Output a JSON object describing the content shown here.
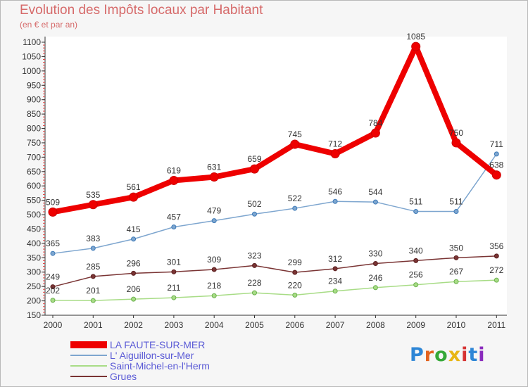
{
  "header": {
    "title": "Evolution des Impôts locaux par Habitant",
    "subtitle": "(en € et par an)"
  },
  "logo": {
    "text": "Proxiti",
    "colors": [
      "#2e86d6",
      "#e2631f",
      "#35a838",
      "#e8b513",
      "#d63333",
      "#2e86d6",
      "#8a2bbd"
    ]
  },
  "chart_data": {
    "type": "line",
    "x": [
      "2000",
      "2001",
      "2002",
      "2003",
      "2004",
      "2005",
      "2006",
      "2007",
      "2008",
      "2009",
      "2010",
      "2011"
    ],
    "ylim": [
      150,
      1100
    ],
    "yticks": [
      150,
      200,
      250,
      300,
      350,
      400,
      450,
      500,
      550,
      600,
      650,
      700,
      750,
      800,
      850,
      900,
      950,
      1000,
      1050,
      1100
    ],
    "grid": false,
    "legend_position": "bottom-left",
    "series": [
      {
        "name": "LA FAUTE-SUR-MER",
        "color": "#ee0000",
        "values": [
          509,
          535,
          561,
          619,
          631,
          659,
          745,
          712,
          784,
          1085,
          750,
          638
        ],
        "labels": [
          "509",
          "535",
          "561",
          "619",
          "631",
          "659",
          "745",
          "712",
          "784",
          "1085",
          "750",
          "638"
        ]
      },
      {
        "name": "L' Aiguillon-sur-Mer",
        "color": "#7ea6cf",
        "values": [
          365,
          383,
          415,
          457,
          479,
          502,
          522,
          546,
          544,
          511,
          511,
          711
        ],
        "labels": [
          "365",
          "383",
          "415",
          "457",
          "479",
          "502",
          "522",
          "546",
          "544",
          "511",
          "511",
          "711"
        ]
      },
      {
        "name": "Saint-Michel-en-l'Herm",
        "color": "#a8dc86",
        "values": [
          202,
          201,
          206,
          211,
          218,
          228,
          220,
          234,
          246,
          256,
          267,
          272
        ],
        "labels": [
          "202",
          "201",
          "206",
          "211",
          "218",
          "228",
          "220",
          "234",
          "246",
          "256",
          "267",
          "272"
        ]
      },
      {
        "name": "Grues",
        "color": "#7a3434",
        "values": [
          249,
          285,
          296,
          301,
          309,
          323,
          299,
          312,
          330,
          340,
          350,
          356
        ],
        "labels": [
          "249",
          "285",
          "296",
          "301",
          "309",
          "323",
          "299",
          "312",
          "330",
          "340",
          "350",
          "356"
        ]
      }
    ]
  }
}
